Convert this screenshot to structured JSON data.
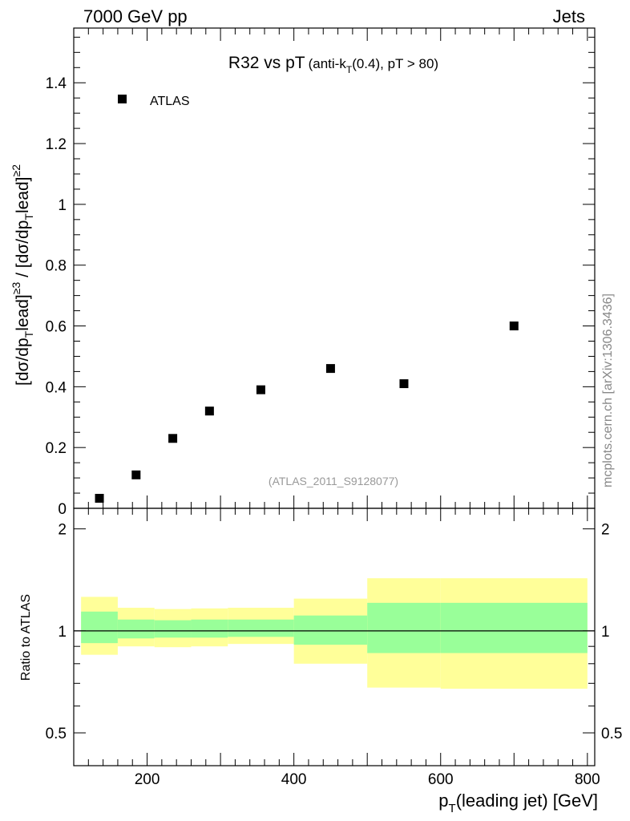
{
  "header": {
    "left": "7000 GeV pp",
    "right": "Jets"
  },
  "side_label": "mcplots.cern.ch [arXiv:1306.3436]",
  "watermark": "(ATLAS_2011_S9128077)",
  "chart_data": [
    {
      "type": "scatter",
      "panel": "main",
      "title": {
        "main": "R32 vs pT",
        "detail_a": "(anti-k",
        "sub": "T",
        "detail_b": "(0.4), pT > 80)"
      },
      "ylabel": {
        "a": "[dσ/dp",
        "sub1": "T",
        "b": "lead]",
        "sup1": "≥3",
        "c": " / [dσ/dp",
        "sub2": "T",
        "d": "lead]",
        "sup2": "≥2"
      },
      "xlim": [
        100,
        810
      ],
      "ylim": [
        0,
        1.58
      ],
      "y_ticks": [
        0,
        0.2,
        0.4,
        0.6,
        0.8,
        1,
        1.2,
        1.4
      ],
      "y_tick_labels": [
        "0",
        "0.2",
        "0.4",
        "0.6",
        "0.8",
        "1",
        "1.2",
        "1.4"
      ],
      "legend": {
        "label": "ATLAS",
        "position": "top-left"
      },
      "series": [
        {
          "name": "ATLAS",
          "x": [
            135,
            185,
            235,
            285,
            355,
            450,
            550,
            700
          ],
          "y": [
            0.033,
            0.11,
            0.23,
            0.32,
            0.39,
            0.46,
            0.41,
            0.6
          ]
        }
      ]
    },
    {
      "type": "area",
      "panel": "ratio",
      "ylabel": "Ratio to ATLAS",
      "xlabel": {
        "a": "p",
        "sub": "T",
        "b": "(leading jet) [GeV]"
      },
      "scale": "log",
      "xlim": [
        100,
        810
      ],
      "ylim": [
        0.4,
        2.3
      ],
      "x_ticks": [
        200,
        400,
        600,
        800
      ],
      "x_tick_labels": [
        "200",
        "400",
        "600",
        "800"
      ],
      "y_ticks": [
        0.5,
        1,
        2
      ],
      "y_tick_labels": [
        "0.5",
        "1",
        "2"
      ],
      "reference_line": 1,
      "bins": [
        {
          "x0": 110,
          "x1": 160,
          "inner_lo": 0.92,
          "inner_hi": 1.14,
          "outer_lo": 0.85,
          "outer_hi": 1.26
        },
        {
          "x0": 160,
          "x1": 210,
          "inner_lo": 0.95,
          "inner_hi": 1.08,
          "outer_lo": 0.9,
          "outer_hi": 1.17
        },
        {
          "x0": 210,
          "x1": 260,
          "inner_lo": 0.955,
          "inner_hi": 1.075,
          "outer_lo": 0.895,
          "outer_hi": 1.16
        },
        {
          "x0": 260,
          "x1": 310,
          "inner_lo": 0.955,
          "inner_hi": 1.08,
          "outer_lo": 0.9,
          "outer_hi": 1.165
        },
        {
          "x0": 310,
          "x1": 400,
          "inner_lo": 0.96,
          "inner_hi": 1.08,
          "outer_lo": 0.915,
          "outer_hi": 1.17
        },
        {
          "x0": 400,
          "x1": 500,
          "inner_lo": 0.91,
          "inner_hi": 1.11,
          "outer_lo": 0.8,
          "outer_hi": 1.245
        },
        {
          "x0": 500,
          "x1": 600,
          "inner_lo": 0.86,
          "inner_hi": 1.21,
          "outer_lo": 0.68,
          "outer_hi": 1.43
        },
        {
          "x0": 600,
          "x1": 800,
          "inner_lo": 0.86,
          "inner_hi": 1.21,
          "outer_lo": 0.675,
          "outer_hi": 1.43
        }
      ],
      "colors": {
        "inner": "#99ff99",
        "outer": "#ffff99"
      }
    }
  ],
  "colors": {
    "marker": "#000000",
    "axis": "#000000",
    "watermark": "#999999",
    "side_label": "#888888"
  }
}
